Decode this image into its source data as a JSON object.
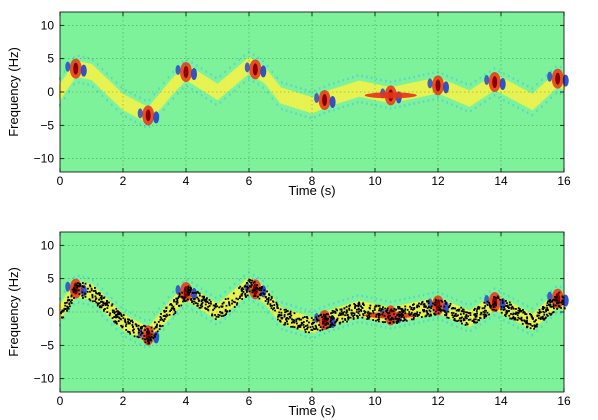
{
  "chart_data": [
    {
      "type": "heatmap",
      "title": "",
      "xlabel": "Time (s)",
      "ylabel": "Frequency (Hz)",
      "xlim": [
        0,
        16
      ],
      "ylim": [
        -12,
        12
      ],
      "xticks": [
        0,
        2,
        4,
        6,
        8,
        10,
        12,
        14,
        16
      ],
      "yticks": [
        -10,
        -5,
        0,
        5,
        10
      ],
      "grid": true,
      "background_color": "#7ef29a",
      "colormap": [
        "#1f3fd0",
        "#39c8e8",
        "#7ef29a",
        "#f2f24a",
        "#e8321a",
        "#8a0000"
      ],
      "ridge": {
        "description_free_points_t": [
          0,
          0.5,
          1.0,
          2.0,
          2.8,
          3.5,
          4.0,
          5.0,
          6.0,
          6.5,
          7.0,
          8.0,
          8.5,
          9.5,
          10.5,
          12.0,
          13.0,
          13.8,
          15.0,
          15.8,
          16.0
        ],
        "freq_hz": [
          0,
          3.5,
          3.0,
          -1.5,
          -3.5,
          0.5,
          3.0,
          0.0,
          4.0,
          2.5,
          -0.5,
          -2.0,
          -1.0,
          0.5,
          -0.5,
          1.0,
          -1.0,
          1.5,
          -1.5,
          2.0,
          1.5
        ]
      },
      "overlay_points": false
    },
    {
      "type": "heatmap",
      "title": "",
      "xlabel": "Time (s)",
      "ylabel": "Frequency (Hz)",
      "xlim": [
        0,
        16
      ],
      "ylim": [
        -12,
        12
      ],
      "xticks": [
        0,
        2,
        4,
        6,
        8,
        10,
        12,
        14,
        16
      ],
      "yticks": [
        -10,
        -5,
        0,
        5,
        10
      ],
      "grid": true,
      "background_color": "#7ef29a",
      "colormap": [
        "#1f3fd0",
        "#39c8e8",
        "#7ef29a",
        "#f2f24a",
        "#e8321a",
        "#8a0000"
      ],
      "ridge": {
        "description_free_points_t": [
          0,
          0.5,
          1.0,
          2.0,
          2.8,
          3.5,
          4.0,
          5.0,
          6.0,
          6.5,
          7.0,
          8.0,
          8.5,
          9.5,
          10.5,
          12.0,
          13.0,
          13.8,
          15.0,
          15.8,
          16.0
        ],
        "freq_hz": [
          0,
          3.5,
          3.0,
          -1.5,
          -3.5,
          0.5,
          3.0,
          0.0,
          4.0,
          2.5,
          -0.5,
          -2.0,
          -1.0,
          0.5,
          -0.5,
          1.0,
          -1.0,
          1.5,
          -1.5,
          2.0,
          1.5
        ]
      },
      "overlay_points": true,
      "overlay_color": "#000000"
    }
  ]
}
